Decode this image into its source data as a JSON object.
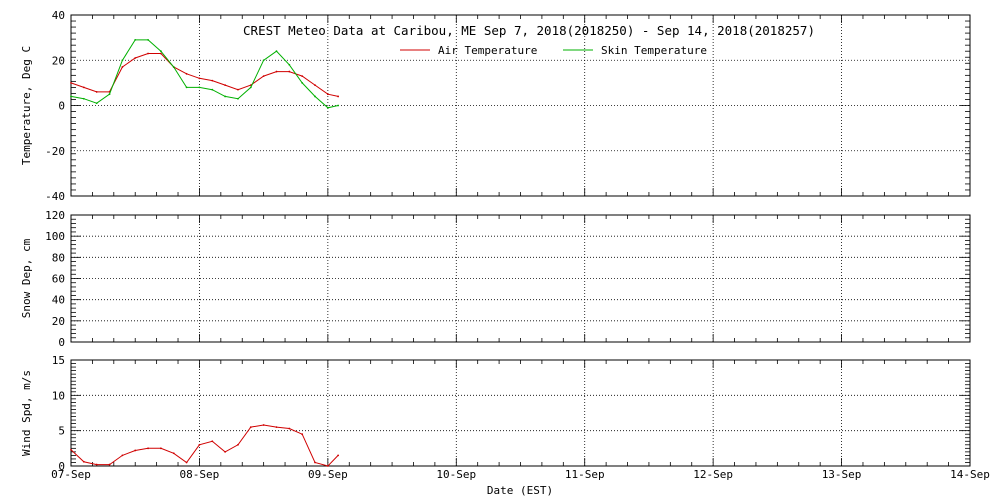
{
  "title": "CREST Meteo Data at Caribou, ME   Sep  7, 2018(2018250) - Sep 14, 2018(2018257)",
  "xlabel": "Date (EST)",
  "colors": {
    "air": "#d00000",
    "skin": "#00b000",
    "wind": "#d00000",
    "axis": "#000000"
  },
  "chart_data": [
    {
      "type": "line",
      "title": "CREST Meteo Data at Caribou, ME   Sep  7, 2018(2018250) - Sep 14, 2018(2018257)",
      "xlabel": "",
      "ylabel": "Temperature, Deg C",
      "xlim": [
        0,
        7
      ],
      "ylim": [
        -40,
        40
      ],
      "yticks": [
        -40,
        -20,
        0,
        20,
        40
      ],
      "x_ticklabels": [
        "07-Sep",
        "08-Sep",
        "09-Sep",
        "10-Sep",
        "11-Sep",
        "12-Sep",
        "13-Sep",
        "14-Sep"
      ],
      "grid": true,
      "legend": "top-center",
      "series": [
        {
          "name": "Air Temperature",
          "x": [
            0,
            0.1,
            0.2,
            0.3,
            0.4,
            0.5,
            0.6,
            0.7,
            0.8,
            0.9,
            1.0,
            1.1,
            1.2,
            1.3,
            1.4,
            1.5,
            1.6,
            1.7,
            1.8,
            1.9,
            2.0,
            2.08
          ],
          "values": [
            10,
            8,
            6,
            6,
            17,
            21,
            23,
            23,
            17,
            14,
            12,
            11,
            9,
            7,
            9,
            13,
            15,
            15,
            13,
            9,
            5,
            4
          ]
        },
        {
          "name": "Skin Temperature",
          "x": [
            0,
            0.1,
            0.2,
            0.3,
            0.4,
            0.5,
            0.6,
            0.7,
            0.8,
            0.9,
            1.0,
            1.1,
            1.2,
            1.3,
            1.4,
            1.5,
            1.6,
            1.7,
            1.8,
            1.9,
            2.0,
            2.08
          ],
          "values": [
            4,
            3,
            1,
            5,
            20,
            29,
            29,
            24,
            17,
            8,
            8,
            7,
            4,
            3,
            8,
            20,
            24,
            18,
            10,
            4,
            -1,
            0
          ]
        }
      ]
    },
    {
      "type": "line",
      "ylabel": "Snow Dep, cm",
      "xlim": [
        0,
        7
      ],
      "ylim": [
        0,
        120
      ],
      "yticks": [
        0,
        20,
        40,
        60,
        80,
        100,
        120
      ],
      "x_ticklabels": [
        "07-Sep",
        "08-Sep",
        "09-Sep",
        "10-Sep",
        "11-Sep",
        "12-Sep",
        "13-Sep",
        "14-Sep"
      ],
      "grid": true,
      "series": []
    },
    {
      "type": "line",
      "ylabel": "Wind Spd, m/s",
      "xlabel": "Date (EST)",
      "xlim": [
        0,
        7
      ],
      "ylim": [
        0,
        15
      ],
      "yticks": [
        0,
        5,
        10,
        15
      ],
      "x_ticklabels": [
        "07-Sep",
        "08-Sep",
        "09-Sep",
        "10-Sep",
        "11-Sep",
        "12-Sep",
        "13-Sep",
        "14-Sep"
      ],
      "grid": true,
      "series": [
        {
          "x": [
            0,
            0.1,
            0.2,
            0.3,
            0.4,
            0.5,
            0.6,
            0.7,
            0.8,
            0.9,
            1.0,
            1.1,
            1.2,
            1.3,
            1.4,
            1.5,
            1.6,
            1.7,
            1.8,
            1.9,
            2.0,
            2.08
          ],
          "values": [
            2.3,
            0.6,
            0.2,
            0.2,
            1.5,
            2.2,
            2.5,
            2.5,
            1.8,
            0.5,
            3.0,
            3.5,
            2.0,
            3.0,
            5.5,
            5.8,
            5.5,
            5.3,
            4.5,
            0.5,
            0.0,
            1.5
          ]
        }
      ]
    }
  ]
}
